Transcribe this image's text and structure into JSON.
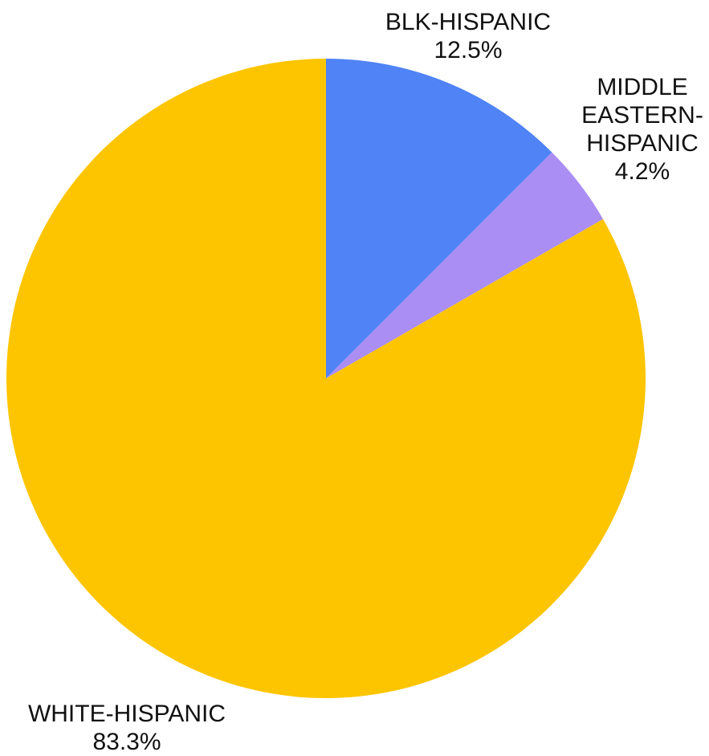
{
  "chart_data": {
    "type": "pie",
    "title": "",
    "slices": [
      {
        "label_lines": [
          "BLK-HISPANIC"
        ],
        "value_label": "12.5%",
        "value": 12.5,
        "color": "#4f83f6"
      },
      {
        "label_lines": [
          "MIDDLE",
          "EASTERN-",
          "HISPANIC"
        ],
        "value_label": "4.2%",
        "value": 4.2,
        "color": "#ab8ef4"
      },
      {
        "label_lines": [
          "WHITE-HISPANIC"
        ],
        "value_label": "83.3%",
        "value": 83.3,
        "color": "#fdc500"
      }
    ]
  }
}
